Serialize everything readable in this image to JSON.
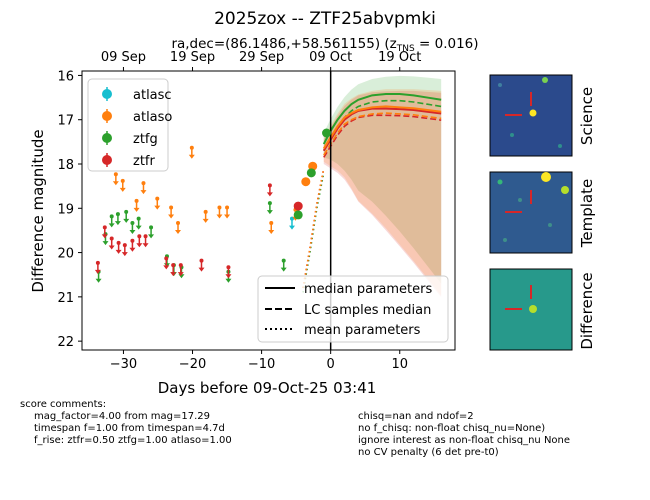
{
  "chart_data": {
    "type": "scatter",
    "title": "2025zox -- ZTF25abvpmki",
    "subtitle_prefix": "ra,dec=(86.1486,+58.561155) (z",
    "subtitle_sub": "TNS",
    "subtitle_suffix": " = 0.016)",
    "xlabel": "Days before 09-Oct-25 03:41",
    "ylabel": "Difference magnitude",
    "xlim": [
      -36,
      18
    ],
    "ylim": [
      22.2,
      15.9
    ],
    "x_ticks": [
      -30,
      -20,
      -10,
      0,
      10
    ],
    "y_ticks": [
      16,
      17,
      18,
      19,
      20,
      21,
      22
    ],
    "top_axis_ticks": [
      {
        "label": "09 Sep",
        "x": -30
      },
      {
        "label": "19 Sep",
        "x": -20
      },
      {
        "label": "29 Sep",
        "x": -10
      },
      {
        "label": "09 Oct",
        "x": 0
      },
      {
        "label": "19 Oct",
        "x": 10
      }
    ],
    "vline_x": 0,
    "series": [
      {
        "name": "atlasc",
        "color": "#17becf",
        "detections": [],
        "upper_limits": [
          [
            -5.6,
            19.3
          ]
        ]
      },
      {
        "name": "atlaso",
        "color": "#ff7f0e",
        "detections": [
          [
            -3.6,
            18.4
          ],
          [
            -2.6,
            18.05
          ]
        ],
        "upper_limits": [
          [
            -31.1,
            18.3
          ],
          [
            -30.1,
            18.45
          ],
          [
            -28.1,
            18.9
          ],
          [
            -27.1,
            18.5
          ],
          [
            -25.1,
            18.85
          ],
          [
            -23.1,
            19.05
          ],
          [
            -22.1,
            19.4
          ],
          [
            -20.1,
            17.7
          ],
          [
            -18.1,
            19.15
          ],
          [
            -16.1,
            19.05
          ],
          [
            -15.0,
            19.05
          ],
          [
            -8.6,
            19.4
          ],
          [
            -5.1,
            19.1
          ]
        ]
      },
      {
        "name": "ztfg",
        "color": "#2ca02c",
        "detections": [
          [
            -2.8,
            18.2
          ],
          [
            -0.6,
            17.3
          ],
          [
            -4.7,
            19.15
          ]
        ],
        "upper_limits": [
          [
            -33.6,
            20.5
          ],
          [
            -32.6,
            19.65
          ],
          [
            -31.7,
            19.25
          ],
          [
            -30.8,
            19.2
          ],
          [
            -29.6,
            19.15
          ],
          [
            -28.7,
            19.4
          ],
          [
            -27.8,
            19.3
          ],
          [
            -26.0,
            19.5
          ],
          [
            -23.7,
            20.15
          ],
          [
            -22.7,
            20.35
          ],
          [
            -21.6,
            20.4
          ],
          [
            -14.8,
            20.5
          ],
          [
            -8.8,
            18.95
          ],
          [
            -6.8,
            20.25
          ]
        ]
      },
      {
        "name": "ztfr",
        "color": "#d62728",
        "detections": [
          [
            -4.7,
            18.95
          ]
        ],
        "upper_limits": [
          [
            -33.7,
            20.3
          ],
          [
            -32.7,
            19.5
          ],
          [
            -31.7,
            19.75
          ],
          [
            -30.7,
            19.85
          ],
          [
            -29.8,
            19.9
          ],
          [
            -28.7,
            19.8
          ],
          [
            -27.7,
            19.7
          ],
          [
            -26.8,
            19.7
          ],
          [
            -23.8,
            20.2
          ],
          [
            -22.8,
            20.35
          ],
          [
            -21.7,
            20.35
          ],
          [
            -18.7,
            20.25
          ],
          [
            -14.8,
            20.4
          ],
          [
            -8.8,
            18.55
          ]
        ]
      }
    ],
    "model_curves": [
      {
        "band": "ztfg",
        "style": "median parameters",
        "color": "#2ca02c",
        "x": [
          -1,
          0,
          1,
          2,
          3,
          4,
          6,
          8,
          10,
          12,
          14,
          16
        ],
        "y": [
          17.55,
          17.25,
          17.0,
          16.8,
          16.65,
          16.55,
          16.45,
          16.42,
          16.42,
          16.45,
          16.5,
          16.55
        ]
      },
      {
        "band": "ztfr",
        "style": "median parameters",
        "color": "#d62728",
        "x": [
          -1,
          0,
          1,
          2,
          3,
          4,
          6,
          8,
          10,
          12,
          14,
          16
        ],
        "y": [
          17.7,
          17.45,
          17.2,
          17.0,
          16.88,
          16.8,
          16.75,
          16.75,
          16.76,
          16.78,
          16.82,
          16.86
        ]
      },
      {
        "band": "atlaso",
        "style": "median parameters",
        "color": "#ff7f0e",
        "x": [
          -1,
          0,
          1,
          2,
          3,
          4,
          6,
          8,
          10,
          12,
          14,
          16
        ],
        "y": [
          17.65,
          17.4,
          17.15,
          16.95,
          16.85,
          16.78,
          16.72,
          16.7,
          16.72,
          16.74,
          16.78,
          16.82
        ]
      }
    ],
    "legend_bands": [
      "atlasc",
      "atlaso",
      "ztfg",
      "ztfr"
    ],
    "legend_lines": [
      {
        "label": "median parameters",
        "style": "solid"
      },
      {
        "label": "LC samples median",
        "style": "dashed"
      },
      {
        "label": "mean parameters",
        "style": "dotted"
      }
    ],
    "cutout_labels": [
      "Science",
      "Template",
      "Difference"
    ]
  },
  "comments": {
    "header": "score comments:",
    "left": [
      "mag_factor=4.00 from mag=17.29",
      "timespan f=1.00 from timespan=4.7d",
      "f_rise: ztfr=0.50 ztfg=1.00 atlaso=1.00"
    ],
    "right": [
      "chisq=nan and ndof=2",
      "no f_chisq: non-float chisq_nu=None)",
      "ignore interest as non-float chisq_nu None",
      "no CV penalty (6 det pre-t0)"
    ]
  }
}
